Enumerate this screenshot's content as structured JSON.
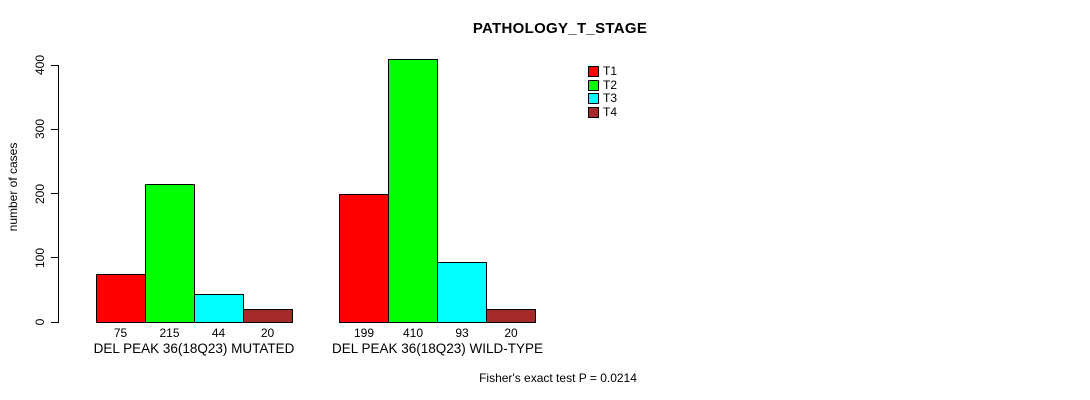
{
  "chart_data": {
    "type": "bar",
    "title": "PATHOLOGY_T_STAGE",
    "ylabel": "number of cases",
    "xlabel": "",
    "ylim": [
      0,
      400
    ],
    "yticks": [
      0,
      100,
      200,
      300,
      400
    ],
    "grid": false,
    "bar_value_labels": true,
    "legend_position": "top-right-inside",
    "categories": [
      "DEL PEAK 36(18Q23) MUTATED",
      "DEL PEAK 36(18Q23) WILD-TYPE"
    ],
    "series": [
      {
        "name": "T1",
        "color": "#ff0000",
        "values": [
          75,
          199
        ]
      },
      {
        "name": "T2",
        "color": "#00ff00",
        "values": [
          215,
          410
        ]
      },
      {
        "name": "T3",
        "color": "#00ffff",
        "values": [
          44,
          93
        ]
      },
      {
        "name": "T4",
        "color": "#a52a2a",
        "values": [
          20,
          20
        ]
      }
    ],
    "annotation": "Fisher's exact test P = 0.0214"
  }
}
